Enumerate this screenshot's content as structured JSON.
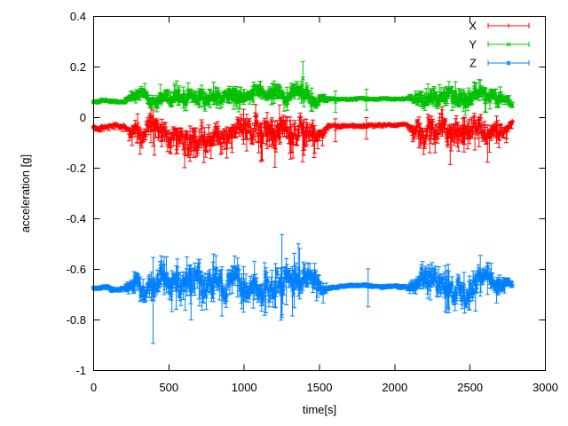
{
  "chart_data": {
    "type": "scatter",
    "style": "points-with-yerrorbars",
    "title": "",
    "xlabel": "time[s]",
    "ylabel": "acceleration [g]",
    "xlim": [
      0,
      3000
    ],
    "ylim": [
      -1,
      0.4
    ],
    "xticks": [
      0,
      500,
      1000,
      1500,
      2000,
      2500,
      3000
    ],
    "yticks": [
      0.4,
      0.2,
      0,
      -0.2,
      -0.4,
      -0.6,
      -0.8,
      -1
    ],
    "grid": false,
    "legend_position": "top-right-inside",
    "background_color": "#ffffff",
    "border_color": "#000000",
    "text_color": "#000000",
    "t_end": 2780,
    "t_step": 4,
    "series": [
      {
        "name": "X",
        "color": "#ff0000",
        "marker": "plus",
        "skew": 0.4,
        "envelope_t_base_noise_err": [
          [
            0,
            -0.038,
            0.009,
            0.012
          ],
          [
            205,
            -0.036,
            0.007,
            0.008
          ],
          [
            245,
            -0.052,
            0.028,
            0.03
          ],
          [
            320,
            -0.055,
            0.04,
            0.045
          ],
          [
            400,
            -0.057,
            0.048,
            0.06
          ],
          [
            500,
            -0.052,
            0.042,
            0.045
          ],
          [
            620,
            -0.055,
            0.046,
            0.05
          ],
          [
            720,
            -0.06,
            0.05,
            0.065
          ],
          [
            820,
            -0.057,
            0.048,
            0.06
          ],
          [
            900,
            -0.05,
            0.038,
            0.04
          ],
          [
            1000,
            -0.052,
            0.044,
            0.05
          ],
          [
            1120,
            -0.056,
            0.05,
            0.055
          ],
          [
            1230,
            -0.062,
            0.054,
            0.068
          ],
          [
            1330,
            -0.06,
            0.054,
            0.065
          ],
          [
            1430,
            -0.052,
            0.042,
            0.05
          ],
          [
            1520,
            -0.045,
            0.022,
            0.025
          ],
          [
            1565,
            -0.03,
            0.005,
            0.006
          ],
          [
            2085,
            -0.03,
            0.005,
            0.006
          ],
          [
            2115,
            -0.048,
            0.03,
            0.03
          ],
          [
            2180,
            -0.052,
            0.045,
            0.05
          ],
          [
            2300,
            -0.056,
            0.05,
            0.055
          ],
          [
            2420,
            -0.05,
            0.044,
            0.05
          ],
          [
            2540,
            -0.057,
            0.05,
            0.058
          ],
          [
            2650,
            -0.05,
            0.042,
            0.045
          ],
          [
            2740,
            -0.035,
            0.02,
            0.02
          ],
          [
            2780,
            -0.015,
            0.008,
            0.008
          ]
        ],
        "events": [
          {
            "t": 1235,
            "lo": -0.105,
            "hi": 0.05,
            "at": -0.05
          },
          {
            "t": 1606,
            "lo": -0.095,
            "hi": -0.005,
            "at": -0.05
          },
          {
            "t": 1812,
            "lo": -0.085,
            "hi": 0.0,
            "at": -0.042
          }
        ]
      },
      {
        "name": "Y",
        "color": "#00c000",
        "marker": "cross",
        "skew": -0.1,
        "envelope_t_base_noise_err": [
          [
            0,
            0.065,
            0.005,
            0.006
          ],
          [
            205,
            0.066,
            0.005,
            0.006
          ],
          [
            245,
            0.078,
            0.018,
            0.016
          ],
          [
            320,
            0.082,
            0.024,
            0.025
          ],
          [
            450,
            0.08,
            0.026,
            0.03
          ],
          [
            600,
            0.084,
            0.026,
            0.028
          ],
          [
            750,
            0.08,
            0.028,
            0.03
          ],
          [
            900,
            0.085,
            0.026,
            0.028
          ],
          [
            1050,
            0.08,
            0.026,
            0.03
          ],
          [
            1200,
            0.084,
            0.03,
            0.034
          ],
          [
            1300,
            0.08,
            0.03,
            0.034
          ],
          [
            1420,
            0.078,
            0.028,
            0.03
          ],
          [
            1520,
            0.076,
            0.016,
            0.018
          ],
          [
            1565,
            0.075,
            0.004,
            0.005
          ],
          [
            2085,
            0.075,
            0.004,
            0.005
          ],
          [
            2115,
            0.085,
            0.02,
            0.02
          ],
          [
            2180,
            0.095,
            0.03,
            0.032
          ],
          [
            2300,
            0.09,
            0.032,
            0.035
          ],
          [
            2420,
            0.094,
            0.03,
            0.032
          ],
          [
            2540,
            0.096,
            0.032,
            0.034
          ],
          [
            2650,
            0.085,
            0.028,
            0.03
          ],
          [
            2740,
            0.065,
            0.018,
            0.018
          ],
          [
            2780,
            0.045,
            0.009,
            0.01
          ]
        ],
        "events": [
          {
            "t": 1390,
            "lo": 0.1,
            "hi": 0.222,
            "at": 0.155
          },
          {
            "t": 1606,
            "lo": 0.02,
            "hi": 0.105,
            "at": 0.062
          },
          {
            "t": 1812,
            "lo": 0.03,
            "hi": 0.112,
            "at": 0.07
          }
        ]
      },
      {
        "name": "Z",
        "color": "#0080ff",
        "marker": "asterisk",
        "skew": 0.05,
        "envelope_t_base_noise_err": [
          [
            0,
            -0.675,
            0.005,
            0.007
          ],
          [
            205,
            -0.675,
            0.007,
            0.009
          ],
          [
            260,
            -0.671,
            0.028,
            0.04
          ],
          [
            330,
            -0.668,
            0.042,
            0.055
          ],
          [
            450,
            -0.665,
            0.05,
            0.065
          ],
          [
            580,
            -0.668,
            0.048,
            0.06
          ],
          [
            700,
            -0.66,
            0.054,
            0.07
          ],
          [
            820,
            -0.656,
            0.055,
            0.07
          ],
          [
            950,
            -0.664,
            0.05,
            0.06
          ],
          [
            1080,
            -0.667,
            0.052,
            0.07
          ],
          [
            1200,
            -0.662,
            0.055,
            0.078
          ],
          [
            1320,
            -0.658,
            0.058,
            0.082
          ],
          [
            1440,
            -0.664,
            0.05,
            0.06
          ],
          [
            1520,
            -0.667,
            0.026,
            0.03
          ],
          [
            1565,
            -0.667,
            0.005,
            0.007
          ],
          [
            2085,
            -0.667,
            0.005,
            0.007
          ],
          [
            2115,
            -0.663,
            0.03,
            0.04
          ],
          [
            2180,
            -0.658,
            0.046,
            0.06
          ],
          [
            2300,
            -0.66,
            0.05,
            0.065
          ],
          [
            2420,
            -0.662,
            0.048,
            0.06
          ],
          [
            2540,
            -0.652,
            0.05,
            0.06
          ],
          [
            2650,
            -0.66,
            0.04,
            0.05
          ],
          [
            2740,
            -0.666,
            0.025,
            0.03
          ],
          [
            2780,
            -0.672,
            0.01,
            0.013
          ]
        ],
        "events": [
          {
            "t": 395,
            "lo": -0.893,
            "hi": -0.553,
            "at": -0.72
          },
          {
            "t": 647,
            "lo": -0.8,
            "hi": -0.6,
            "at": -0.675
          },
          {
            "t": 1250,
            "lo": -0.79,
            "hi": -0.462,
            "at": -0.67
          },
          {
            "t": 1823,
            "lo": -0.748,
            "hi": -0.598,
            "at": -0.667
          }
        ]
      }
    ],
    "quiet_segments_s": [
      [
        0,
        205
      ],
      [
        1565,
        2085
      ]
    ],
    "active_segments_s": [
      [
        245,
        1520
      ],
      [
        2115,
        2780
      ]
    ]
  }
}
